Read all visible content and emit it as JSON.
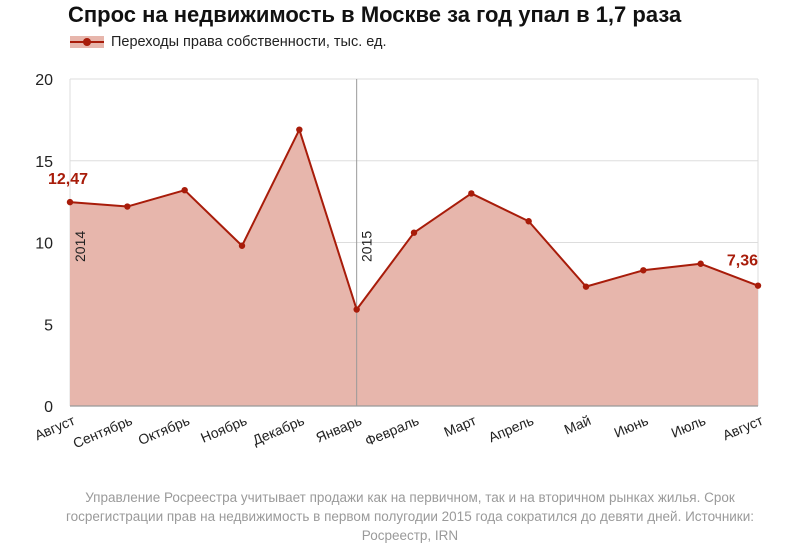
{
  "title": "Спрос на недвижимость в Москве за год упал в 1,7 раза",
  "legend": {
    "label": "Переходы права собственности, тыс. ед."
  },
  "footnote": "Управление Росреестра учитывает продажи как на первичном, так и на вторичном рынках жилья. Срок госрегистрации прав на недвижимость в первом полугодии 2015 года сократился до девяти дней. Источники: Росреестр, IRN",
  "colors": {
    "line": "#a81c0a",
    "area": "#e7b6ac",
    "grid": "#dddddd",
    "axis": "#999999",
    "label": "#a81c0a"
  },
  "chart_data": {
    "type": "area",
    "categories": [
      "Август",
      "Сентябрь",
      "Октябрь",
      "Ноябрь",
      "Декабрь",
      "Январь",
      "Февраль",
      "Март",
      "Апрель",
      "Май",
      "Июнь",
      "Июль",
      "Август"
    ],
    "series": [
      {
        "name": "Переходы права собственности, тыс. ед.",
        "values": [
          12.47,
          12.2,
          13.2,
          9.8,
          16.9,
          5.9,
          10.6,
          13.0,
          11.3,
          7.3,
          8.3,
          8.7,
          7.36
        ]
      }
    ],
    "ylim": [
      0,
      20
    ],
    "yticks": [
      "0",
      "5",
      "10",
      "15",
      "20"
    ],
    "grid": true,
    "annotations": [
      {
        "index": 0,
        "text": "12,47"
      },
      {
        "index": 12,
        "text": "7,36"
      }
    ],
    "year_markers": [
      {
        "index": 0,
        "text": "2014"
      },
      {
        "index": 5,
        "text": "2015"
      }
    ]
  }
}
